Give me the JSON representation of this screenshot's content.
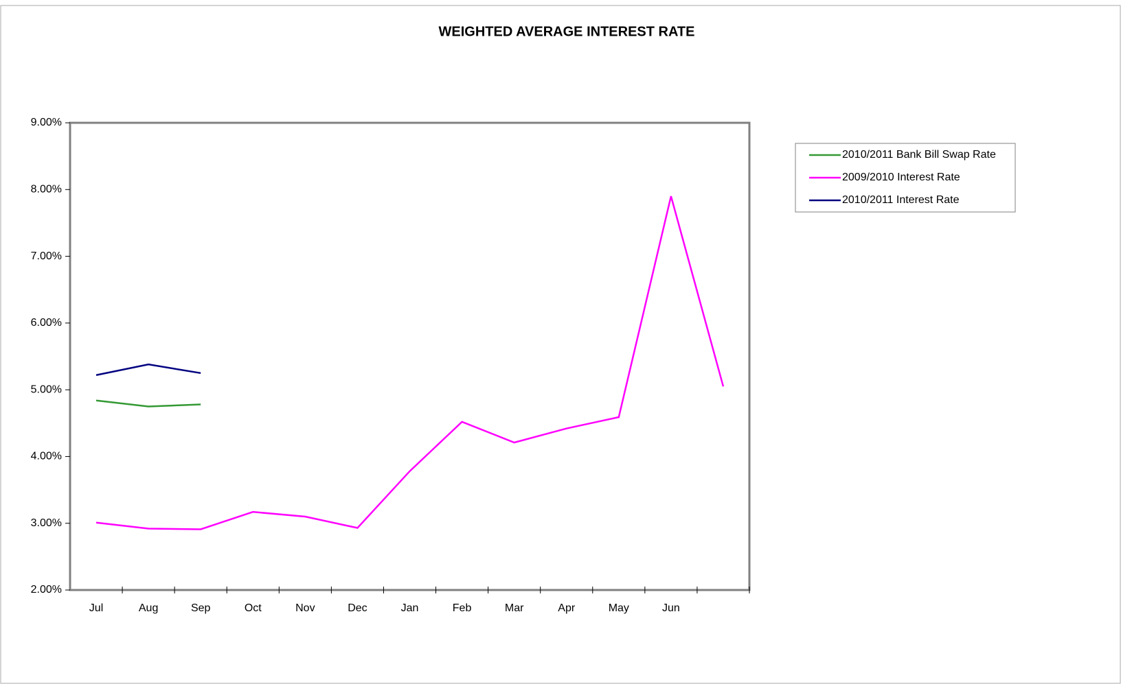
{
  "chart_data": {
    "type": "line",
    "title": "WEIGHTED AVERAGE INTEREST RATE",
    "categories": [
      "Jul",
      "Aug",
      "Sep",
      "Oct",
      "Nov",
      "Dec",
      "Jan",
      "Feb",
      "Mar",
      "Apr",
      "May",
      "Jun",
      null
    ],
    "series": [
      {
        "name": "2010/2011 Bank Bill Swap Rate",
        "color": "#339933",
        "values": [
          4.84,
          4.75,
          4.78,
          null,
          null,
          null,
          null,
          null,
          null,
          null,
          null,
          null,
          null
        ]
      },
      {
        "name": "2009/2010 Interest Rate",
        "color": "#ff00ff",
        "values": [
          3.01,
          2.92,
          2.91,
          3.17,
          3.1,
          2.93,
          3.78,
          4.52,
          4.21,
          4.42,
          4.59,
          7.9,
          5.05
        ]
      },
      {
        "name": "2010/2011 Interest Rate",
        "color": "#000080",
        "values": [
          5.22,
          5.38,
          5.25,
          null,
          null,
          null,
          null,
          null,
          null,
          null,
          null,
          null,
          null
        ]
      }
    ],
    "ylim": [
      2,
      9
    ],
    "yticks": [
      {
        "value": 2,
        "label": "2.00%"
      },
      {
        "value": 3,
        "label": "3.00%"
      },
      {
        "value": 4,
        "label": "4.00%"
      },
      {
        "value": 5,
        "label": "5.00%"
      },
      {
        "value": 6,
        "label": "6.00%"
      },
      {
        "value": 7,
        "label": "7.00%"
      },
      {
        "value": 8,
        "label": "8.00%"
      },
      {
        "value": 9,
        "label": "9.00%"
      }
    ],
    "grid": false,
    "legend": "right"
  }
}
